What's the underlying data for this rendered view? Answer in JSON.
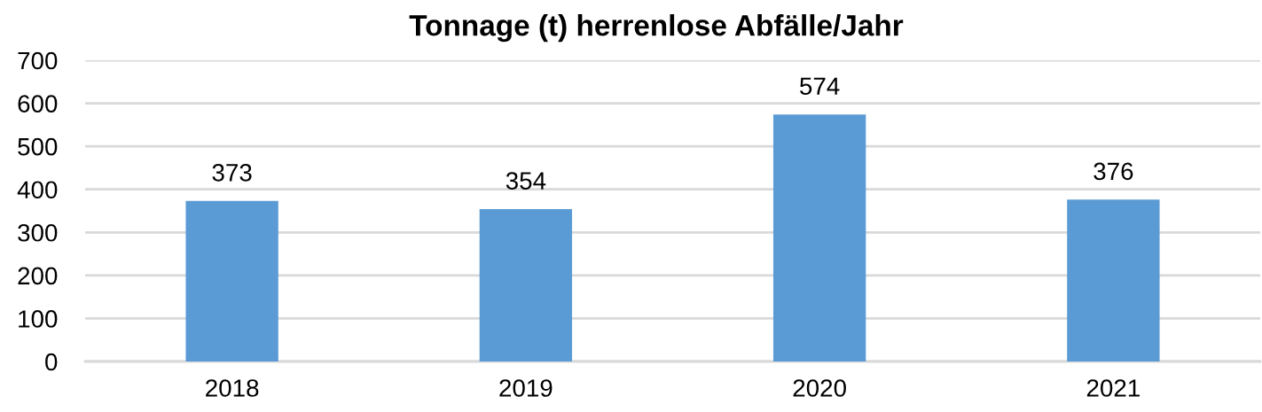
{
  "chart_data": {
    "type": "bar",
    "title": "Tonnage (t) herrenlose Abfälle/Jahr",
    "categories": [
      "2018",
      "2019",
      "2020",
      "2021"
    ],
    "values": [
      373,
      354,
      574,
      376
    ],
    "color": "#5b9bd5",
    "ylim": [
      0,
      700
    ],
    "yticks": [
      0,
      100,
      200,
      300,
      400,
      500,
      600,
      700
    ],
    "grid": "y",
    "data_labels": true
  }
}
